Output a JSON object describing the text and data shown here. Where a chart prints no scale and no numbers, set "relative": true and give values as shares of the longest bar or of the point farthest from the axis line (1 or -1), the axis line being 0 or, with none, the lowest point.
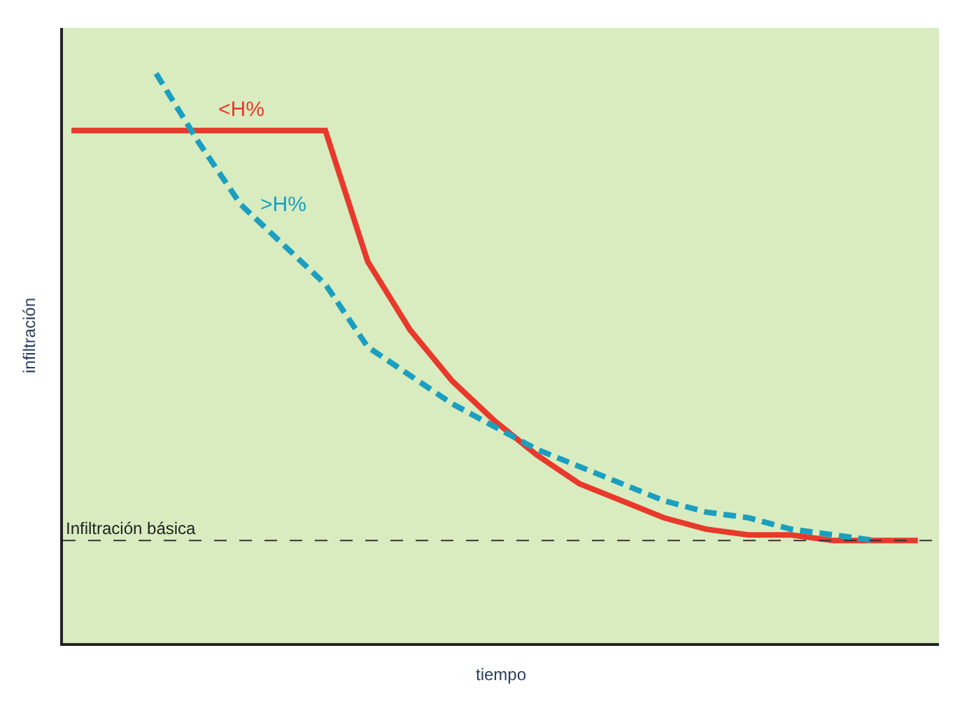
{
  "chart_data": {
    "type": "line",
    "relative": true,
    "xlabel": "tiempo",
    "ylabel": "infiltración",
    "legend": false,
    "grid": false,
    "marker": "none",
    "categories": [
      null,
      null,
      null,
      null,
      null,
      null,
      null,
      null,
      null,
      null,
      null,
      null,
      null,
      null,
      null,
      null,
      null,
      null,
      null,
      null,
      null
    ],
    "series": [
      {
        "name": "<H%",
        "color": "#e8392b",
        "line_style": "solid",
        "values": [
          0.9,
          0.9,
          0.9,
          0.9,
          0.9,
          0.9,
          0.9,
          0.67,
          0.55,
          0.46,
          0.39,
          0.33,
          0.28,
          0.25,
          0.22,
          0.2,
          0.19,
          0.19,
          0.18,
          0.18,
          0.18
        ]
      },
      {
        "name": ">H%",
        "color": "#1a9fc0",
        "line_style": "dashed",
        "values": [
          null,
          null,
          1.0,
          0.88,
          0.77,
          0.7,
          0.63,
          0.52,
          0.47,
          0.42,
          0.38,
          0.34,
          0.31,
          0.28,
          0.25,
          0.23,
          0.22,
          0.2,
          0.19,
          0.18,
          null
        ]
      }
    ],
    "ref_lines": [
      {
        "axis": "y",
        "value": 0.18,
        "label": "Infiltración básica",
        "color": "#333333",
        "line_style": "dashed"
      }
    ]
  }
}
